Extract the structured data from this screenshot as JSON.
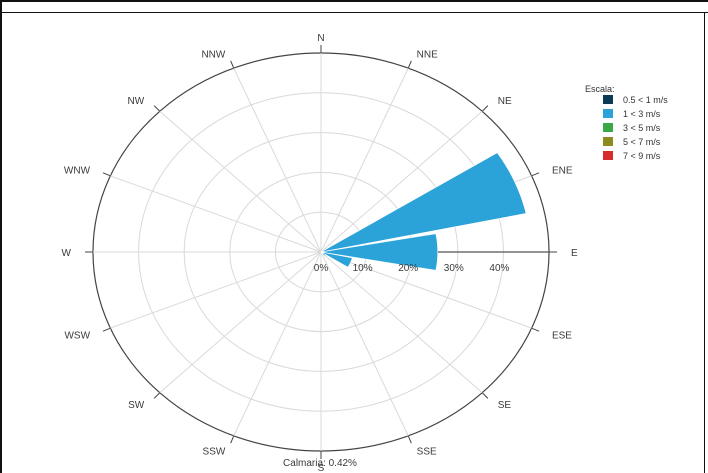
{
  "chart_data": {
    "type": "wind-rose",
    "directions": [
      "N",
      "NNE",
      "NE",
      "ENE",
      "E",
      "ESE",
      "SE",
      "SSE",
      "S",
      "SSW",
      "SW",
      "WSW",
      "W",
      "WNW",
      "NW",
      "NNW"
    ],
    "radial_ticks": [
      "0%",
      "10%",
      "20%",
      "30%",
      "40%"
    ],
    "r_max": 50,
    "legend_title": "Escala:",
    "series": [
      {
        "name": "0.5 < 1 m/s",
        "color": "#0b3a57",
        "values": [
          0,
          0,
          0,
          0,
          0.6,
          0,
          0,
          0,
          0,
          0,
          0,
          0,
          0,
          0,
          0,
          0
        ]
      },
      {
        "name": "1 < 3 m/s",
        "color": "#2ba2d8",
        "values": [
          0,
          0,
          0.8,
          46,
          25,
          7,
          1.2,
          0.5,
          0,
          0,
          0,
          0,
          0,
          0,
          0,
          0
        ]
      },
      {
        "name": "3 < 5 m/s",
        "color": "#3aa845",
        "values": [
          0,
          0,
          0,
          0,
          0,
          0,
          0,
          0,
          0,
          0,
          0,
          0,
          0,
          0,
          0,
          0
        ]
      },
      {
        "name": "5 < 7 m/s",
        "color": "#8c8c1e",
        "values": [
          0,
          0,
          0,
          0,
          0,
          0,
          0,
          0,
          0,
          0,
          0,
          0,
          0,
          0,
          0,
          0
        ]
      },
      {
        "name": "7 < 9 m/s",
        "color": "#d62c2c",
        "values": [
          0,
          0,
          0,
          0,
          0,
          0,
          0,
          0,
          0,
          0,
          0,
          0,
          0,
          0,
          0,
          0
        ]
      }
    ],
    "calm_label": "Calmaria: 0.42%",
    "legend_position": "top-right"
  }
}
